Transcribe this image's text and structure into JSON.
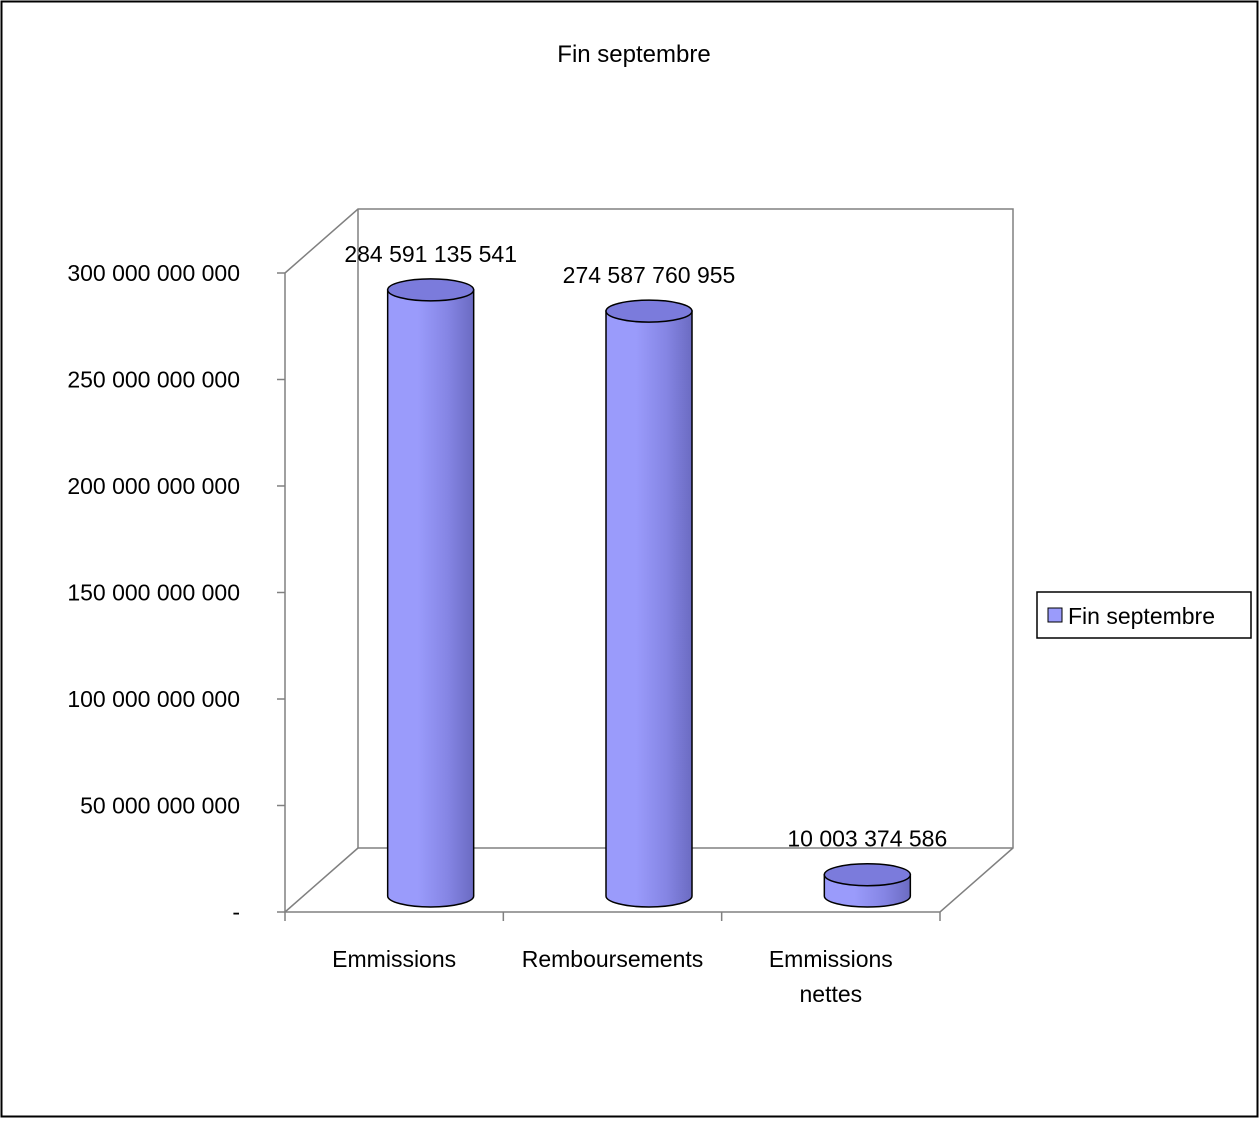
{
  "chart_data": {
    "type": "bar",
    "title": "Fin septembre",
    "categories": [
      "Emmissions",
      "Remboursements",
      "Emmissions nettes"
    ],
    "category_lines": [
      [
        "Emmissions"
      ],
      [
        "Remboursements"
      ],
      [
        "Emmissions",
        "nettes"
      ]
    ],
    "series": [
      {
        "name": "Fin septembre",
        "values": [
          284591135541,
          274587760955,
          10003374586
        ],
        "data_labels": [
          "284 591 135 541",
          "274 587 760 955",
          "10 003 374 586"
        ]
      }
    ],
    "ylim": [
      0,
      300000000000
    ],
    "yticks": [
      0,
      50000000000,
      100000000000,
      150000000000,
      200000000000,
      250000000000,
      300000000000
    ],
    "ytick_labels": [
      "-",
      "50 000 000 000",
      "100 000 000 000",
      "150 000 000 000",
      "200 000 000 000",
      "250 000 000 000",
      "300 000 000 000"
    ],
    "xlabel": "",
    "ylabel": "",
    "grid": false,
    "legend_position": "right",
    "style": "3d-cylinder",
    "colors": {
      "bar_light": "#9a9bfb",
      "bar_mid": "#8585e4",
      "bar_dark": "#6b6bc2",
      "bar_top": "#7b7bdc",
      "axis": "#808080",
      "border": "#000000"
    }
  }
}
